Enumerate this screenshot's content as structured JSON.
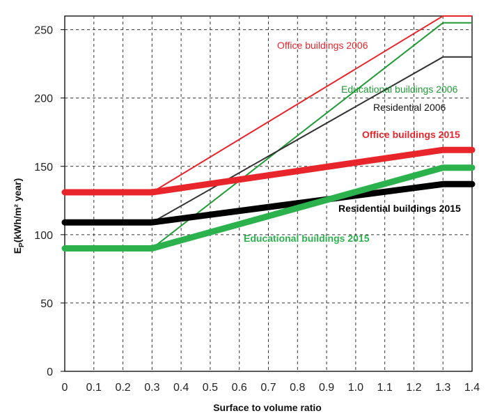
{
  "chart_data": {
    "type": "line",
    "title": "",
    "xlabel": "Surface to volume ratio",
    "ylabel": "E",
    "ylabel_sub": "P",
    "ylabel_unit": "(kWh/m² year)",
    "xlim": [
      0,
      1.4
    ],
    "ylim": [
      0,
      260
    ],
    "x_ticks": [
      "0",
      "0.1",
      "0.2",
      "0.3",
      "0.4",
      "0.5",
      "0.6",
      "0.7",
      "0.8",
      "0.9",
      "1.0",
      "1.1",
      "1.2",
      "1.3",
      "1.4"
    ],
    "y_ticks": [
      "0",
      "50",
      "100",
      "150",
      "200",
      "250"
    ],
    "grid": true,
    "series": [
      {
        "name": "Office buildings 2006",
        "color": "#e8252a",
        "weight": "thin",
        "x": [
          0.3,
          1.3,
          1.4
        ],
        "y": [
          131,
          260,
          260
        ]
      },
      {
        "name": "Educational buildings 2006",
        "color": "#1f9a35",
        "weight": "thin",
        "x": [
          0.3,
          1.3,
          1.4
        ],
        "y": [
          90,
          255,
          255
        ]
      },
      {
        "name": "Residential 2006",
        "color": "#333333",
        "weight": "thin",
        "x": [
          0.3,
          1.3,
          1.4
        ],
        "y": [
          109,
          230,
          230
        ]
      },
      {
        "name": "Office buildings 2015",
        "color": "#e8252a",
        "weight": "thick",
        "x": [
          0,
          0.3,
          1.3,
          1.4
        ],
        "y": [
          131,
          131,
          162,
          162
        ]
      },
      {
        "name": "Residential buildings 2015",
        "color": "#000000",
        "weight": "thick",
        "x": [
          0,
          0.3,
          1.3,
          1.4
        ],
        "y": [
          109,
          109,
          137,
          137
        ]
      },
      {
        "name": "Educational buildings 2015",
        "color": "#2bb24c",
        "weight": "thick",
        "x": [
          0,
          0.3,
          1.3,
          1.4
        ],
        "y": [
          90,
          90,
          149,
          149
        ]
      }
    ],
    "annotations": [
      {
        "text": "Office buildings 2006",
        "color": "#e8252a",
        "bold": false
      },
      {
        "text": "Educational buildings 2006",
        "color": "#1f9a35",
        "bold": false
      },
      {
        "text": "Residential 2006",
        "color": "#111111",
        "bold": false
      },
      {
        "text": "Office buildings 2015",
        "color": "#e8252a",
        "bold": true
      },
      {
        "text": "Residential buildings 2015",
        "color": "#000000",
        "bold": true
      },
      {
        "text": "Educational buildings 2015",
        "color": "#2bb24c",
        "bold": true
      }
    ]
  }
}
